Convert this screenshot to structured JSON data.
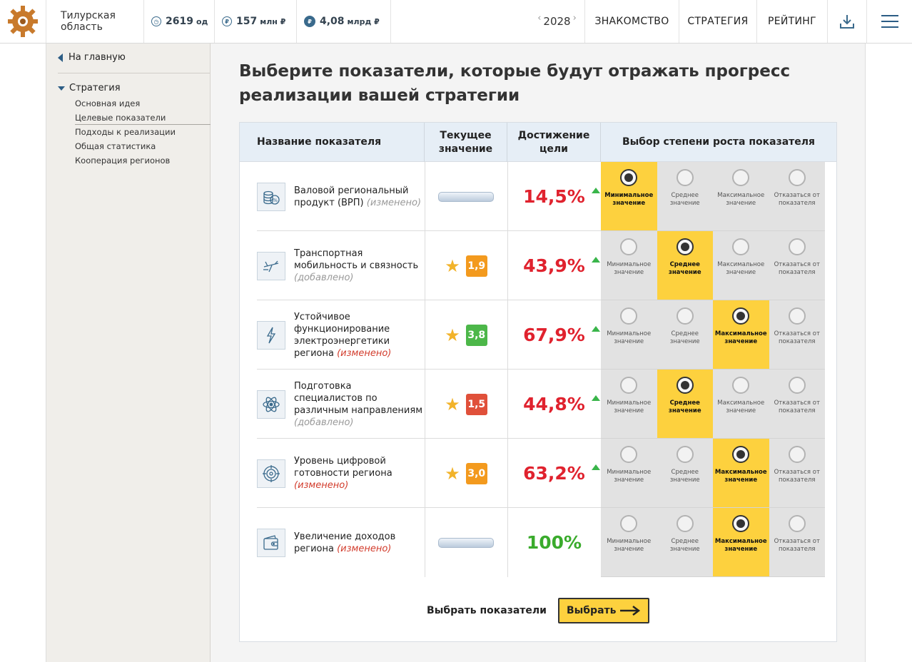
{
  "header": {
    "region": "Тилурская область",
    "stats": [
      {
        "icon": "clock-icon",
        "value": "2619",
        "unit": "од"
      },
      {
        "icon": "ruble-icon",
        "value": "157",
        "unit": "млн ₽"
      },
      {
        "icon": "ruble-filled-icon",
        "value": "4,08",
        "unit": "млрд ₽"
      }
    ],
    "year": "2028",
    "nav": [
      "ЗНАКОМСТВО",
      "СТРАТЕГИЯ",
      "РЕЙТИНГ"
    ]
  },
  "sidebar": {
    "home": "На главную",
    "section": "Стратегия",
    "items": [
      "Основная идея",
      "Целевые показатели",
      "Подходы к реализации",
      "Общая статистика",
      "Кооперация регионов"
    ]
  },
  "main": {
    "title": "Выберите показатели, которые будут отражать прогресс реализации вашей стратегии",
    "columns": [
      "Название показателя",
      "Текущее значение",
      "Достижение цели",
      "Выбор степени роста показателя"
    ],
    "options": [
      "Минимальное значение",
      "Среднее значение",
      "Максимальное значение",
      "Отказаться от показателя"
    ],
    "rows": [
      {
        "icon": "coins-icon",
        "name": "Валовой региональный продукт (ВРП)",
        "note": "(изменено)",
        "note_color": "#999999",
        "current": "",
        "badge_color": "",
        "goal": "14,5%",
        "goal_color": "#e0222e",
        "trend": true,
        "selected": 0
      },
      {
        "icon": "airplane-icon",
        "name": "Транспортная мобильность и связность",
        "note": "(добавлено)",
        "note_color": "#999999",
        "current": "1,9",
        "badge_color": "#f39a1e",
        "goal": "43,9%",
        "goal_color": "#e0222e",
        "trend": true,
        "selected": 1
      },
      {
        "icon": "lightning-icon",
        "name": "Устойчивое функционирование электроэнергетики региона",
        "note": "(изменено)",
        "note_color": "#d23b2b",
        "current": "3,8",
        "badge_color": "#4cb749",
        "goal": "67,9%",
        "goal_color": "#e0222e",
        "trend": true,
        "selected": 2
      },
      {
        "icon": "atom-icon",
        "name": "Подготовка специалистов по различным направлениям",
        "note": "(добавлено)",
        "note_color": "#999999",
        "current": "1,5",
        "badge_color": "#e0503a",
        "goal": "44,8%",
        "goal_color": "#e0222e",
        "trend": true,
        "selected": 1
      },
      {
        "icon": "target-icon",
        "name": "Уровень цифровой готовности региона",
        "note": "(изменено)",
        "note_color": "#d23b2b",
        "current": "3,0",
        "badge_color": "#f39a1e",
        "goal": "63,2%",
        "goal_color": "#e0222e",
        "trend": true,
        "selected": 2
      },
      {
        "icon": "wallet-icon",
        "name": "Увеличение доходов региона",
        "note": "(изменено)",
        "note_color": "#d23b2b",
        "current": "",
        "badge_color": "",
        "goal": "100%",
        "goal_color": "#3aab2c",
        "trend": false,
        "selected": 2
      }
    ],
    "footer_text": "Выбрать показатели",
    "button_label": "Выбрать"
  }
}
